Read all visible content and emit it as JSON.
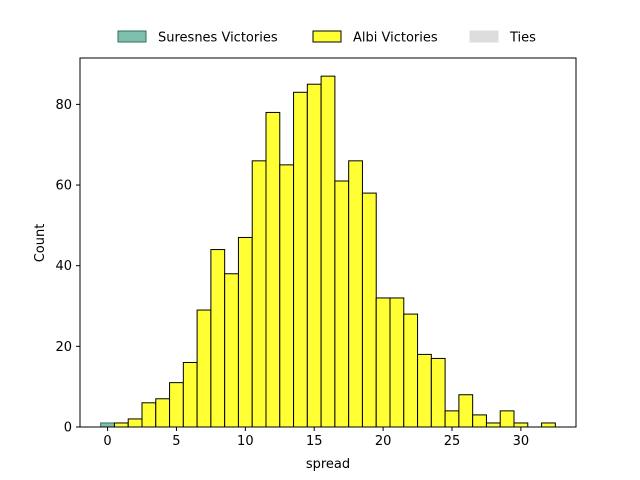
{
  "chart_data": {
    "type": "bar",
    "xlabel": "spread",
    "ylabel": "Count",
    "xlim": [
      -2.0,
      34.0
    ],
    "ylim": [
      0,
      91.5
    ],
    "xticks": [
      0,
      5,
      10,
      15,
      20,
      25,
      30
    ],
    "yticks": [
      0,
      20,
      40,
      60,
      80
    ],
    "legend_position": "top-center",
    "bin_width": 1,
    "series": [
      {
        "name": "Suresnes Victories",
        "color": "#7fbfae",
        "edge": "#2f6f60",
        "bins": [
          -0.5
        ],
        "counts": [
          1
        ]
      },
      {
        "name": "Albi Victories",
        "color": "#ffff33",
        "edge": "#000000",
        "bins": [
          0.5,
          1.5,
          2.5,
          3.5,
          4.5,
          5.5,
          6.5,
          7.5,
          8.5,
          9.5,
          10.5,
          11.5,
          12.5,
          13.5,
          14.5,
          15.5,
          16.5,
          17.5,
          18.5,
          19.5,
          20.5,
          21.5,
          22.5,
          23.5,
          24.5,
          25.5,
          26.5,
          27.5,
          28.5,
          29.5,
          30.5,
          31.5
        ],
        "counts": [
          1,
          2,
          6,
          7,
          11,
          16,
          29,
          44,
          38,
          47,
          66,
          78,
          65,
          83,
          85,
          87,
          61,
          66,
          58,
          32,
          32,
          28,
          18,
          17,
          4,
          8,
          3,
          1,
          4,
          1,
          0,
          1
        ]
      },
      {
        "name": "Ties",
        "color": "#dddddd",
        "edge": "#dddddd",
        "bins": [],
        "counts": []
      }
    ]
  }
}
